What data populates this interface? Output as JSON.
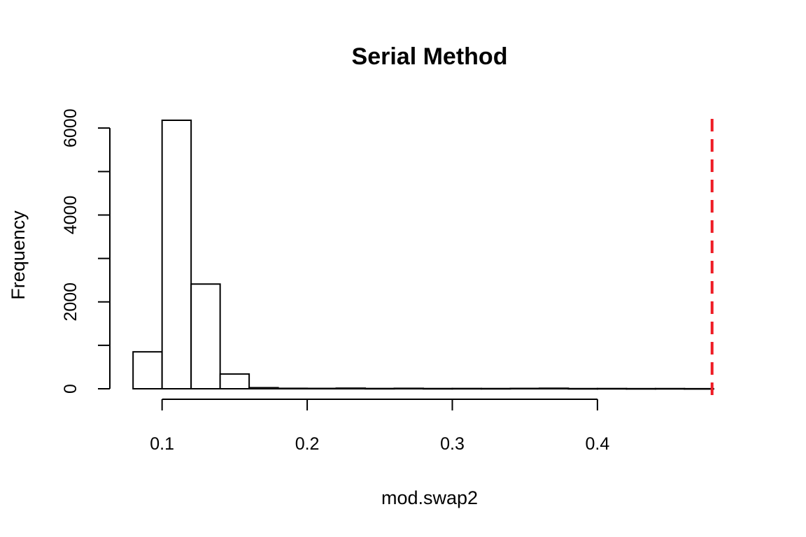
{
  "chart_data": {
    "type": "histogram",
    "title": "Serial Method",
    "xlabel": "mod.swap2",
    "ylabel": "Frequency",
    "bin_edges": [
      0.08,
      0.1,
      0.12,
      0.14,
      0.16,
      0.18,
      0.2,
      0.22,
      0.24,
      0.26,
      0.28,
      0.3,
      0.32,
      0.34,
      0.36,
      0.38,
      0.4,
      0.42,
      0.44,
      0.46,
      0.48
    ],
    "counts": [
      850,
      6180,
      2410,
      340,
      25,
      10,
      8,
      14,
      6,
      10,
      5,
      6,
      5,
      8,
      12,
      4,
      5,
      3,
      4,
      2
    ],
    "xlim": [
      0.064,
      0.496
    ],
    "ylim": [
      0,
      6180
    ],
    "x_ticks": [
      0.1,
      0.2,
      0.3,
      0.4
    ],
    "x_tick_labels": [
      "0.1",
      "0.2",
      "0.3",
      "0.4"
    ],
    "y_ticks": [
      0,
      1000,
      2000,
      3000,
      4000,
      5000,
      6000
    ],
    "y_tick_labels": [
      "0",
      "",
      "2000",
      "",
      "4000",
      "",
      "6000"
    ],
    "grid": false,
    "reference_line": {
      "x": 0.479,
      "color": "#ee1c25",
      "style": "dashed"
    },
    "bar_fill": "#ffffff",
    "bar_stroke": "#000000"
  }
}
